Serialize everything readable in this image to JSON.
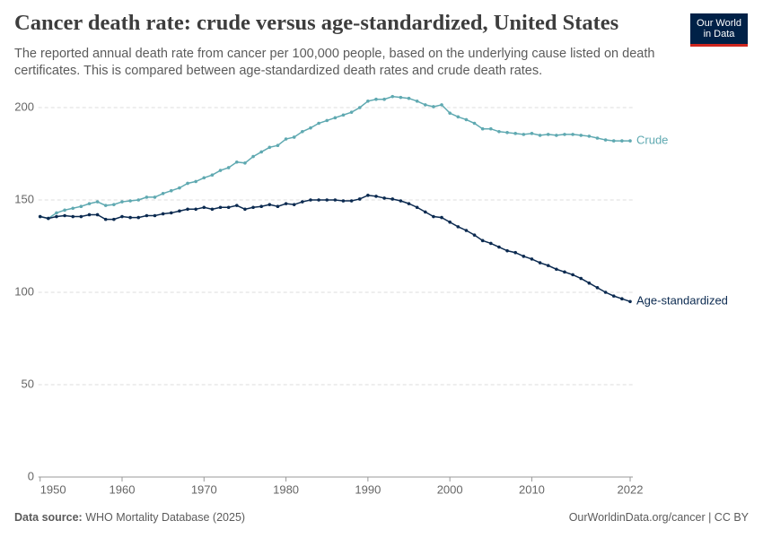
{
  "chart_data": {
    "type": "line",
    "title": "Cancer death rate: crude versus age-standardized, United States",
    "subtitle": "The reported annual death rate from cancer per 100,000 people, based on the underlying cause listed on death certificates. This is compared between age-standardized death rates and crude death rates.",
    "logo": [
      "Our World",
      "in Data"
    ],
    "source_label": "Data source:",
    "source": "WHO Mortality Database (2025)",
    "credit": "OurWorldinData.org/cancer | CC BY",
    "x": [
      1950,
      1951,
      1952,
      1953,
      1954,
      1955,
      1956,
      1957,
      1958,
      1959,
      1960,
      1961,
      1962,
      1963,
      1964,
      1965,
      1966,
      1967,
      1968,
      1969,
      1970,
      1971,
      1972,
      1973,
      1974,
      1975,
      1976,
      1977,
      1978,
      1979,
      1980,
      1981,
      1982,
      1983,
      1984,
      1985,
      1986,
      1987,
      1988,
      1989,
      1990,
      1991,
      1992,
      1993,
      1994,
      1995,
      1996,
      1997,
      1998,
      1999,
      2000,
      2001,
      2002,
      2003,
      2004,
      2005,
      2006,
      2007,
      2008,
      2009,
      2010,
      2011,
      2012,
      2013,
      2014,
      2015,
      2016,
      2017,
      2018,
      2019,
      2020,
      2021,
      2022
    ],
    "series": [
      {
        "name": "Crude",
        "color": "#5fa9b1",
        "values": [
          141,
          140,
          143,
          144.5,
          145.5,
          146.5,
          148,
          149,
          147,
          147.5,
          149,
          149.5,
          150,
          151.5,
          151.5,
          153.5,
          155,
          156.5,
          159,
          160,
          162,
          163.5,
          166,
          167.5,
          170.5,
          170,
          173.5,
          176,
          178.5,
          179.5,
          183,
          184,
          187,
          189,
          191.5,
          193,
          194.5,
          196,
          197.5,
          200,
          203.5,
          204.5,
          204.5,
          206,
          205.5,
          205,
          203.5,
          201.5,
          200.5,
          201.5,
          197,
          195,
          193.5,
          191.5,
          188.5,
          188.5,
          187,
          186.5,
          186,
          185.5,
          186,
          185,
          185.5,
          185,
          185.5,
          185.5,
          185,
          184.5,
          183.5,
          182.5,
          182,
          182,
          182
        ]
      },
      {
        "name": "Age-standardized",
        "color": "#0b2a50",
        "values": [
          141,
          140,
          141,
          141.5,
          141,
          141,
          142,
          142,
          139.5,
          139.5,
          141,
          140.5,
          140.5,
          141.5,
          141.5,
          142.5,
          143,
          144,
          145,
          145,
          146,
          145,
          146,
          146,
          147,
          145,
          146,
          146.5,
          147.5,
          146.5,
          148,
          147.5,
          149,
          150,
          150,
          150,
          150,
          149.5,
          149.5,
          150.5,
          152.5,
          152,
          151,
          150.5,
          149.5,
          148,
          146,
          143.5,
          141,
          140.5,
          138,
          135.5,
          133.5,
          131,
          128,
          126.5,
          124.5,
          122.5,
          121.5,
          119.5,
          118,
          116,
          114.5,
          112.5,
          111,
          109.5,
          107.5,
          105,
          102.5,
          100,
          98,
          96.5,
          95
        ]
      }
    ],
    "xlim": [
      1950,
      2022
    ],
    "xticks": [
      1950,
      1960,
      1970,
      1980,
      1990,
      2000,
      2010,
      2022
    ],
    "ylim": [
      0,
      210
    ],
    "yticks": [
      0,
      50,
      100,
      150,
      200
    ],
    "grid": true
  }
}
